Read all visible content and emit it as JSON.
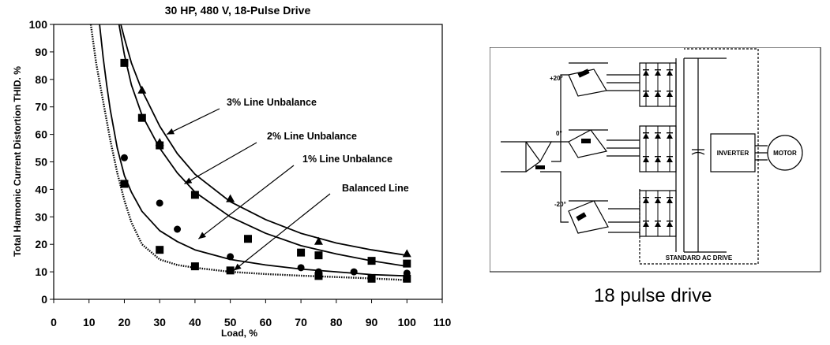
{
  "chart_data": {
    "type": "line",
    "title": "30 HP, 480 V, 18-Pulse Drive",
    "xlabel": "Load, %",
    "ylabel": "Total Harmonic Current Distortion THID. %",
    "xlim": [
      0,
      110
    ],
    "ylim": [
      0,
      100
    ],
    "xticks": [
      0,
      10,
      20,
      30,
      40,
      50,
      60,
      70,
      80,
      90,
      100,
      110
    ],
    "yticks": [
      0,
      10,
      20,
      30,
      40,
      50,
      60,
      70,
      80,
      90,
      100
    ],
    "grid": false,
    "series": [
      {
        "name": "3% Line Unbalance",
        "marker": "triangle",
        "points": [
          [
            25,
            76
          ],
          [
            30,
            57
          ],
          [
            50,
            36.5
          ],
          [
            75,
            21
          ],
          [
            100,
            16.5
          ]
        ],
        "curve": [
          [
            19,
            100
          ],
          [
            20,
            95
          ],
          [
            22,
            86
          ],
          [
            25,
            76
          ],
          [
            30,
            63
          ],
          [
            35,
            53
          ],
          [
            40,
            45.5
          ],
          [
            50,
            35.5
          ],
          [
            60,
            29
          ],
          [
            70,
            24
          ],
          [
            80,
            20.5
          ],
          [
            90,
            18
          ],
          [
            100,
            16
          ]
        ]
      },
      {
        "name": "2% Line Unbalance",
        "marker": "square",
        "points": [
          [
            20,
            86
          ],
          [
            25,
            66
          ],
          [
            30,
            56
          ],
          [
            40,
            38
          ],
          [
            55,
            22
          ],
          [
            70,
            17
          ],
          [
            75,
            16
          ],
          [
            90,
            14
          ],
          [
            100,
            13
          ]
        ],
        "curve": [
          [
            18.5,
            100
          ],
          [
            20,
            89
          ],
          [
            22,
            78
          ],
          [
            25,
            67
          ],
          [
            30,
            55
          ],
          [
            35,
            46
          ],
          [
            40,
            39
          ],
          [
            50,
            30
          ],
          [
            60,
            24
          ],
          [
            70,
            19.5
          ],
          [
            80,
            16.5
          ],
          [
            90,
            14
          ],
          [
            100,
            12
          ]
        ]
      },
      {
        "name": "1% Line Unbalance",
        "marker": "circle",
        "points": [
          [
            20,
            51.5
          ],
          [
            30,
            35
          ],
          [
            35,
            25.5
          ],
          [
            50,
            15.5
          ],
          [
            70,
            11.5
          ],
          [
            75,
            10
          ],
          [
            85,
            10
          ],
          [
            100,
            9.5
          ]
        ],
        "curve": [
          [
            13,
            100
          ],
          [
            14,
            88
          ],
          [
            15,
            78
          ],
          [
            16,
            69
          ],
          [
            18,
            55
          ],
          [
            20,
            45
          ],
          [
            22,
            39
          ],
          [
            25,
            32
          ],
          [
            30,
            25
          ],
          [
            35,
            21
          ],
          [
            40,
            18
          ],
          [
            50,
            14.5
          ],
          [
            60,
            12.5
          ],
          [
            70,
            11
          ],
          [
            80,
            10
          ],
          [
            90,
            9
          ],
          [
            100,
            8.5
          ]
        ]
      },
      {
        "name": "Balanced Line",
        "marker": "square",
        "points": [
          [
            20,
            42
          ],
          [
            30,
            18
          ],
          [
            40,
            12
          ],
          [
            50,
            10.5
          ],
          [
            75,
            8.5
          ],
          [
            90,
            7.5
          ],
          [
            100,
            7.5
          ]
        ],
        "curve": [
          [
            10.5,
            100
          ],
          [
            12,
            86
          ],
          [
            14,
            72
          ],
          [
            16,
            58
          ],
          [
            18,
            46
          ],
          [
            20,
            36
          ],
          [
            22,
            28
          ],
          [
            25,
            20
          ],
          [
            30,
            14.5
          ],
          [
            35,
            12.5
          ],
          [
            40,
            11.5
          ],
          [
            50,
            10
          ],
          [
            60,
            9.2
          ],
          [
            70,
            8.6
          ],
          [
            80,
            8.1
          ],
          [
            90,
            7.6
          ],
          [
            100,
            7
          ]
        ]
      }
    ],
    "annotations": [
      {
        "text": "3% Line Unbalance",
        "points_to": [
          32,
          60
        ]
      },
      {
        "text": "2% Line Unbalance",
        "points_to": [
          37,
          42
        ]
      },
      {
        "text": "1% Line Unbalance",
        "points_to": [
          41,
          22
        ]
      },
      {
        "text": "Balanced Line",
        "points_to": [
          51,
          10.5
        ]
      }
    ]
  },
  "diagram": {
    "labels": {
      "plus20": "+20°",
      "zero": "0°",
      "minus20": "-20°",
      "inverter": "INVERTER",
      "motor": "MOTOR",
      "standard_ac_drive": "STANDARD AC DRIVE"
    },
    "caption": "18 pulse drive"
  }
}
